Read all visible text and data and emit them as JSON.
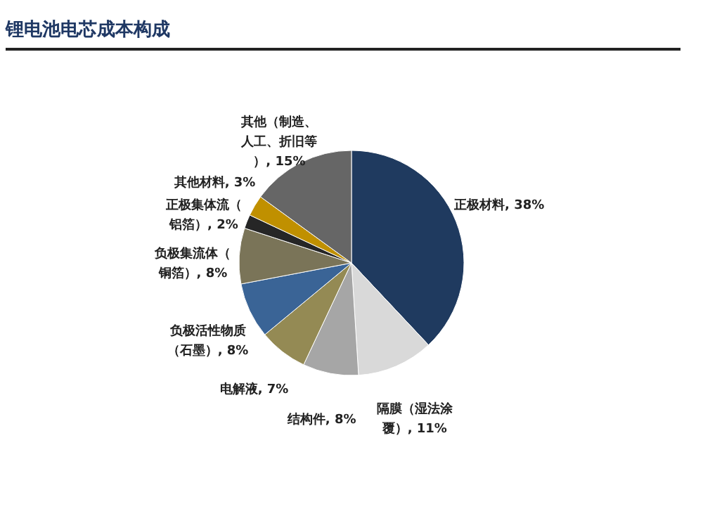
{
  "chart_data": {
    "type": "pie",
    "title": "锂电池电芯成本构成",
    "categories": [
      "正极材料",
      "隔膜（湿法涂覆）",
      "结构件",
      "电解液",
      "负极活性物质（石墨）",
      "负极集流体（铜箔）",
      "正极集体流（铝箔）",
      "其他材料",
      "其他（制造、人工、折旧等）"
    ],
    "values": [
      38,
      11,
      8,
      7,
      8,
      8,
      2,
      3,
      15
    ],
    "value_labels": [
      "38%",
      "11%",
      "8%",
      "7%",
      "8%",
      "8%",
      "2%",
      "3%",
      "15%"
    ],
    "colors": [
      "#1f3a5f",
      "#d9d9d9",
      "#a6a6a6",
      "#948a54",
      "#3a6496",
      "#7a7458",
      "#262626",
      "#c09000",
      "#666666"
    ]
  }
}
